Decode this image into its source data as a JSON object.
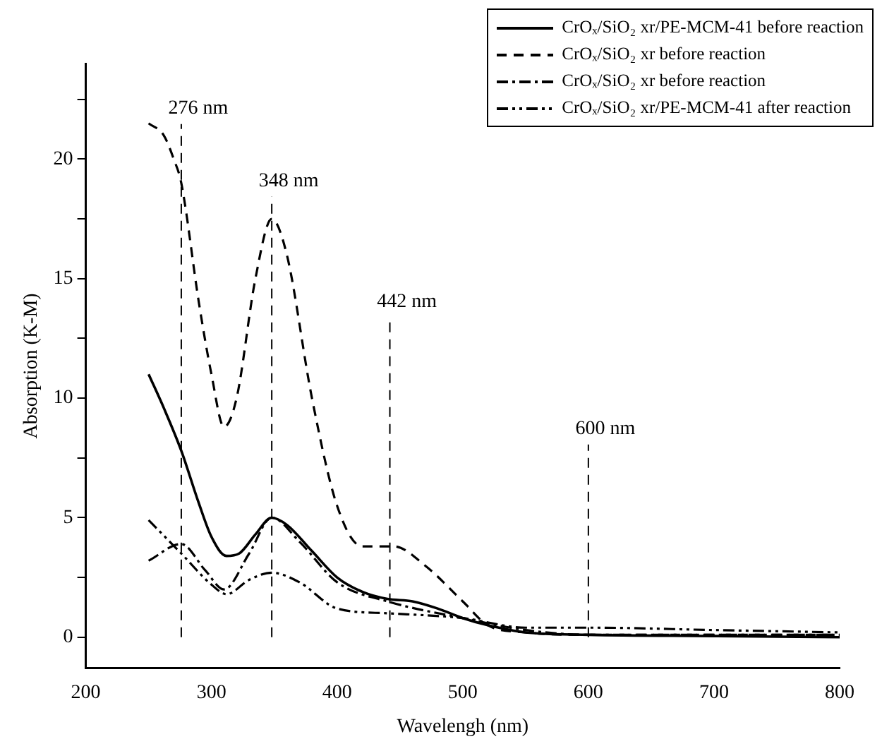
{
  "chart_data": {
    "type": "line",
    "xlabel": "Wavelengh (nm)",
    "ylabel": "Absorption (K-M)",
    "xlim": [
      200,
      800
    ],
    "xticks": [
      200,
      300,
      400,
      500,
      600,
      700,
      800
    ],
    "ylim": [
      -1.3,
      24
    ],
    "yticks": [
      0,
      {
        "value": 2.5,
        "label": null
      },
      5,
      {
        "value": 7.5,
        "label": null
      },
      10,
      {
        "value": 12.5,
        "label": null
      },
      15,
      {
        "value": 17.5,
        "label": null
      },
      20,
      {
        "value": 22.5,
        "label": null
      }
    ],
    "grid": false,
    "legend": "top right",
    "marker": "none",
    "series": [
      {
        "name": "CrOₓ/SiO₂ xr/PE-MCM-41 before reaction",
        "color": "#000000",
        "line_style": "solid",
        "x": [
          250,
          262,
          276,
          290,
          300,
          312,
          322,
          335,
          348,
          360,
          380,
          400,
          420,
          440,
          460,
          480,
          500,
          520,
          550,
          600,
          700,
          800
        ],
        "values": [
          11,
          9.6,
          7.8,
          5.6,
          4.2,
          3.4,
          3.5,
          4.3,
          5.0,
          4.7,
          3.6,
          2.5,
          1.9,
          1.6,
          1.5,
          1.2,
          0.8,
          0.5,
          0.2,
          0.1,
          0.05,
          0
        ]
      },
      {
        "name": "CrOₓ/SiO₂ xr before reaction",
        "color": "#000000",
        "line_style": "dashed",
        "x": [
          250,
          262,
          270,
          276,
          290,
          300,
          310,
          320,
          335,
          348,
          360,
          380,
          400,
          420,
          445,
          470,
          500,
          520,
          550,
          600,
          700,
          800
        ],
        "values": [
          21.5,
          21,
          20,
          19,
          14,
          11,
          8.8,
          10,
          15,
          17.5,
          16,
          10,
          5.5,
          3.8,
          3.8,
          3,
          1.5,
          0.5,
          0.2,
          0.1,
          0.1,
          0.1
        ]
      },
      {
        "name": "CrOₓ/SiO₂ xr before reaction",
        "color": "#000000",
        "line_style": "dashdot",
        "x": [
          250,
          276,
          295,
          310,
          330,
          348,
          370,
          400,
          440,
          500,
          550,
          600,
          700,
          800
        ],
        "values": [
          3.2,
          3.9,
          2.8,
          2.0,
          3.5,
          5.0,
          4.0,
          2.3,
          1.5,
          0.8,
          0.3,
          0.1,
          0.1,
          0.1
        ]
      },
      {
        "name": "CrOₓ/SiO₂ xr/PE-MCM-41 after reaction",
        "color": "#000000",
        "line_style": "dashdotdot",
        "x": [
          250,
          276,
          300,
          312,
          330,
          348,
          370,
          400,
          440,
          500,
          550,
          600,
          700,
          800
        ],
        "values": [
          4.9,
          3.5,
          2.2,
          1.8,
          2.4,
          2.7,
          2.3,
          1.2,
          1.0,
          0.8,
          0.4,
          0.4,
          0.3,
          0.2
        ]
      }
    ],
    "ref_lines": [
      {
        "axis": "x",
        "value": 276,
        "label": "276 nm",
        "line_style": "dashed"
      },
      {
        "axis": "x",
        "value": 348,
        "label": "348 nm",
        "line_style": "dashed"
      },
      {
        "axis": "x",
        "value": 442,
        "label": "442 nm",
        "line_style": "dashed"
      },
      {
        "axis": "x",
        "value": 600,
        "label": "600 nm",
        "line_style": "dashed"
      }
    ]
  }
}
